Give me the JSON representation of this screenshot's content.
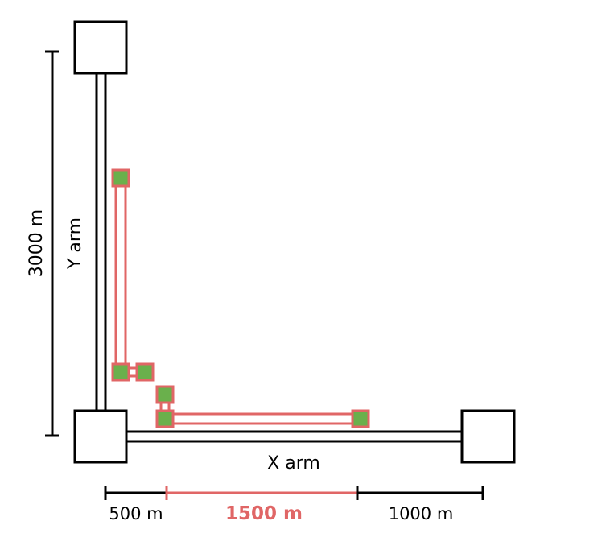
{
  "diagram": {
    "x_arm_label": "X arm",
    "y_arm_label": "Y arm",
    "dimension_y": "3000 m",
    "dimension_x_left": "500 m",
    "dimension_x_middle": "1500 m",
    "dimension_x_right": "1000 m"
  },
  "colors": {
    "line": "#000000",
    "accent": "#e06666",
    "node_fill": "#6ab04c"
  }
}
